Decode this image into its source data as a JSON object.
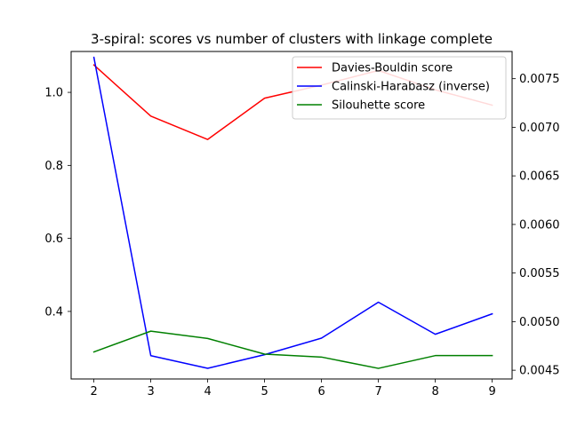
{
  "chart_data": {
    "type": "line",
    "title": "3-spiral: scores vs number of clusters with linkage complete",
    "xlabel": "",
    "ylabel": "",
    "x": [
      2,
      3,
      4,
      5,
      6,
      7,
      8,
      9
    ],
    "xlim": [
      1.6,
      9.35
    ],
    "y_left": {
      "ylim": [
        0.215,
        1.112
      ],
      "ticks": [
        0.4,
        0.6,
        0.8,
        1.0
      ],
      "tick_labels": [
        "0.4",
        "0.6",
        "0.8",
        "1.0"
      ]
    },
    "y_right": {
      "ylim": [
        0.00441,
        0.00778
      ],
      "ticks": [
        0.0045,
        0.005,
        0.0055,
        0.006,
        0.0065,
        0.007,
        0.0075
      ],
      "tick_labels": [
        "0.0045",
        "0.0050",
        "0.0055",
        "0.0060",
        "0.0065",
        "0.0070",
        "0.0075"
      ]
    },
    "x_ticks": [
      2,
      3,
      4,
      5,
      6,
      7,
      8,
      9
    ],
    "x_tick_labels": [
      "2",
      "3",
      "4",
      "5",
      "6",
      "7",
      "8",
      "9"
    ],
    "grid": false,
    "legend_position": "top-right",
    "series": [
      {
        "name": "Davies-Bouldin score",
        "color": "#ff0000",
        "axis": "left",
        "values": [
          1.075,
          0.935,
          0.871,
          0.984,
          1.02,
          1.06,
          1.007,
          0.965
        ]
      },
      {
        "name": "Calinski-Harabasz (inverse)",
        "color": "#0000ff",
        "axis": "right",
        "values": [
          0.00772,
          0.00465,
          0.00452,
          0.00466,
          0.00483,
          0.0052,
          0.00487,
          0.00508
        ]
      },
      {
        "name": "Silouhette score",
        "color": "#008000",
        "axis": "left",
        "values": [
          0.289,
          0.346,
          0.326,
          0.283,
          0.275,
          0.244,
          0.279,
          0.279
        ]
      }
    ]
  }
}
